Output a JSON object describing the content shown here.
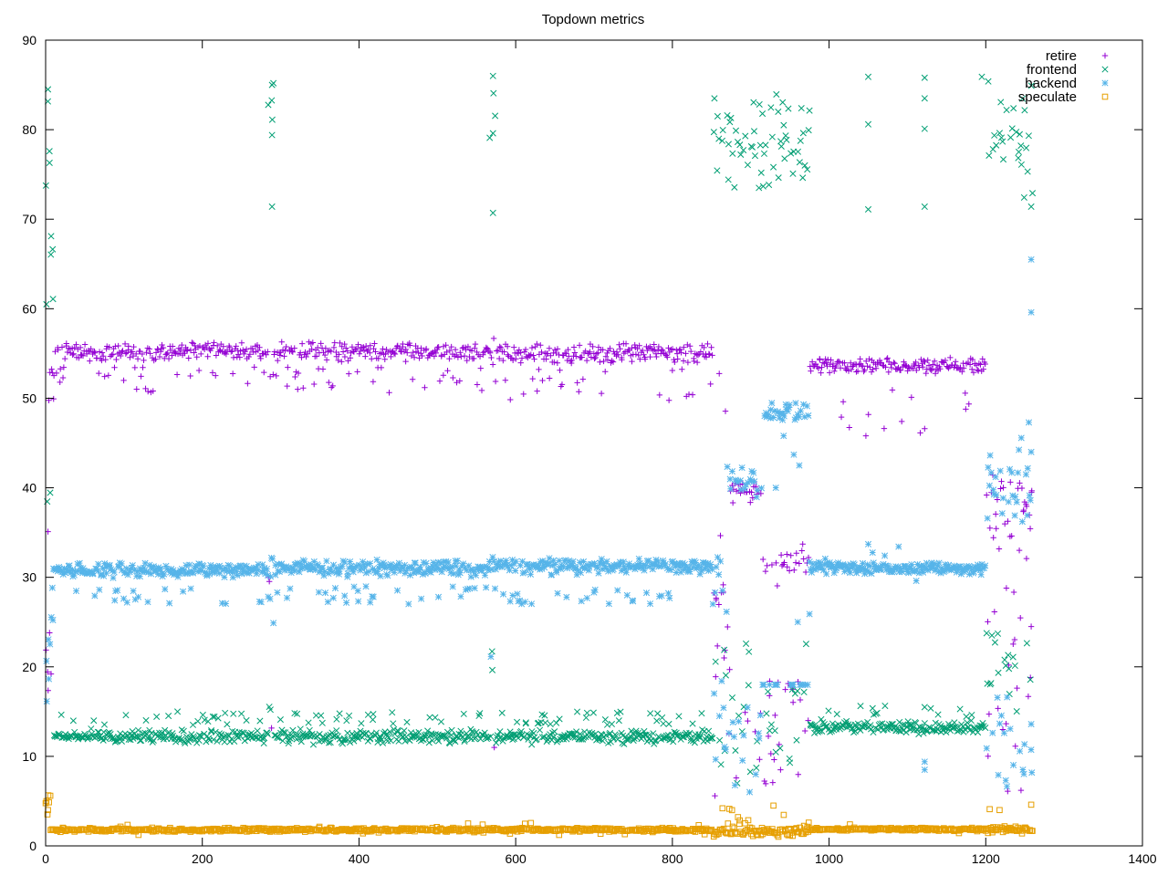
{
  "chart_data": {
    "type": "scatter",
    "title": "Topdown metrics",
    "xlabel": "",
    "ylabel": "",
    "xlim": [
      0,
      1400
    ],
    "ylim": [
      0,
      90
    ],
    "x_ticks": [
      0,
      200,
      400,
      600,
      800,
      1000,
      1200,
      1400
    ],
    "y_ticks": [
      0,
      10,
      20,
      30,
      40,
      50,
      60,
      70,
      80,
      90
    ],
    "grid": false,
    "legend_position": "top-right",
    "series": [
      {
        "name": "retire",
        "marker": "plus",
        "color": "#9400d3",
        "segments": [
          {
            "x0": 0,
            "x1": 4,
            "base": 21,
            "jitter": 14,
            "outlier_prob": 0.3,
            "outlier_low": 6,
            "outlier_high": 35
          },
          {
            "x0": 4,
            "x1": 12,
            "base": 52,
            "jitter": 3,
            "outlier_prob": 0.2,
            "outlier_low": 19,
            "outlier_high": 50
          },
          {
            "x0": 12,
            "x1": 284,
            "base": 55.2,
            "jitter": 1.2,
            "outlier_prob": 0.12,
            "outlier_low": 50.5,
            "outlier_high": 53.5
          },
          {
            "x0": 284,
            "x1": 292,
            "base": 53,
            "jitter": 3,
            "outlier_prob": 0.5,
            "outlier_low": 6,
            "outlier_high": 48
          },
          {
            "x0": 292,
            "x1": 566,
            "base": 55.2,
            "jitter": 1.2,
            "outlier_prob": 0.12,
            "outlier_low": 50.5,
            "outlier_high": 53.5
          },
          {
            "x0": 566,
            "x1": 574,
            "base": 55,
            "jitter": 2,
            "outlier_prob": 0.5,
            "outlier_low": 6,
            "outlier_high": 42
          },
          {
            "x0": 574,
            "x1": 852,
            "base": 55.0,
            "jitter": 1.3,
            "outlier_prob": 0.12,
            "outlier_low": 49.5,
            "outlier_high": 53.5
          },
          {
            "x0": 852,
            "x1": 870,
            "base": 27,
            "jitter": 12,
            "outlier_prob": 0.4,
            "outlier_low": 5,
            "outlier_high": 56
          },
          {
            "x0": 870,
            "x1": 915,
            "base": 39.5,
            "jitter": 1.5,
            "outlier_prob": 0.3,
            "outlier_low": 5,
            "outlier_high": 27
          },
          {
            "x0": 915,
            "x1": 975,
            "base": 31.5,
            "jitter": 2.5,
            "outlier_prob": 0.35,
            "outlier_low": 5,
            "outlier_high": 19
          },
          {
            "x0": 975,
            "x1": 1200,
            "base": 53.7,
            "jitter": 1.0,
            "outlier_prob": 0.05,
            "outlier_low": 46,
            "outlier_high": 52
          },
          {
            "x0": 1200,
            "x1": 1260,
            "base": 38,
            "jitter": 5,
            "outlier_prob": 0.4,
            "outlier_low": 6,
            "outlier_high": 45
          }
        ],
        "points": [
          [
            3,
            35.1
          ],
          [
            5,
            23.8
          ],
          [
            7,
            19.2
          ],
          [
            856,
            27.5
          ],
          [
            866,
            21.0
          ],
          [
            1047,
            45.8
          ],
          [
            1122,
            46.6
          ],
          [
            1228,
            6.1
          ],
          [
            1245,
            6.2
          ],
          [
            1252,
            32.1
          ],
          [
            1258,
            24.5
          ],
          [
            1257,
            18.8
          ]
        ]
      },
      {
        "name": "frontend",
        "marker": "cross",
        "color": "#009e73",
        "segments": [
          {
            "x0": 0,
            "x1": 10,
            "base": 70,
            "jitter": 16,
            "outlier_prob": 0.3,
            "outlier_low": 10,
            "outlier_high": 43
          },
          {
            "x0": 10,
            "x1": 284,
            "base": 12.2,
            "jitter": 0.9,
            "outlier_prob": 0.12,
            "outlier_low": 13.5,
            "outlier_high": 15
          },
          {
            "x0": 284,
            "x1": 292,
            "base": 82,
            "jitter": 5,
            "outlier_prob": 0.3,
            "outlier_low": 8,
            "outlier_high": 18
          },
          {
            "x0": 292,
            "x1": 566,
            "base": 12.2,
            "jitter": 0.9,
            "outlier_prob": 0.12,
            "outlier_low": 13.5,
            "outlier_high": 15
          },
          {
            "x0": 566,
            "x1": 574,
            "base": 79,
            "jitter": 7,
            "outlier_prob": 0.4,
            "outlier_low": 10,
            "outlier_high": 40
          },
          {
            "x0": 574,
            "x1": 852,
            "base": 12.2,
            "jitter": 0.9,
            "outlier_prob": 0.12,
            "outlier_low": 13.5,
            "outlier_high": 15
          },
          {
            "x0": 852,
            "x1": 975,
            "base": 79,
            "jitter": 7,
            "outlier_prob": 0.35,
            "outlier_low": 6,
            "outlier_high": 23
          },
          {
            "x0": 975,
            "x1": 1200,
            "base": 13.2,
            "jitter": 0.8,
            "outlier_prob": 0.05,
            "outlier_low": 14,
            "outlier_high": 16
          },
          {
            "x0": 1200,
            "x1": 1260,
            "base": 79,
            "jitter": 7,
            "outlier_prob": 0.45,
            "outlier_low": 15,
            "outlier_high": 24
          }
        ],
        "points": [
          [
            1,
            60.5
          ],
          [
            3,
            84.5
          ],
          [
            5,
            76.3
          ],
          [
            7,
            68.1
          ],
          [
            289,
            85.0
          ],
          [
            289,
            79.4
          ],
          [
            289,
            71.4
          ],
          [
            571,
            86.0
          ],
          [
            571,
            79.6
          ],
          [
            571,
            70.7
          ],
          [
            1050,
            85.9
          ],
          [
            1050,
            71.1
          ],
          [
            1050,
            80.6
          ],
          [
            1122,
            85.8
          ],
          [
            1122,
            80.1
          ],
          [
            1122,
            71.4
          ],
          [
            1122,
            83.5
          ],
          [
            1122,
            15.5
          ],
          [
            1195,
            85.9
          ],
          [
            1258,
            71.4
          ]
        ]
      },
      {
        "name": "backend",
        "marker": "star",
        "color": "#56b4e9",
        "segments": [
          {
            "x0": 0,
            "x1": 10,
            "base": 20,
            "jitter": 15,
            "outlier_prob": 0.2,
            "outlier_low": 5,
            "outlier_high": 37
          },
          {
            "x0": 10,
            "x1": 284,
            "base": 30.8,
            "jitter": 1.0,
            "outlier_prob": 0.1,
            "outlier_low": 27,
            "outlier_high": 29
          },
          {
            "x0": 284,
            "x1": 292,
            "base": 30,
            "jitter": 5,
            "outlier_prob": 0.4,
            "outlier_low": 6,
            "outlier_high": 36
          },
          {
            "x0": 292,
            "x1": 566,
            "base": 31.0,
            "jitter": 1.0,
            "outlier_prob": 0.1,
            "outlier_low": 27,
            "outlier_high": 29
          },
          {
            "x0": 566,
            "x1": 574,
            "base": 30,
            "jitter": 6,
            "outlier_prob": 0.4,
            "outlier_low": 6,
            "outlier_high": 38
          },
          {
            "x0": 574,
            "x1": 852,
            "base": 31.2,
            "jitter": 1.0,
            "outlier_prob": 0.1,
            "outlier_low": 27,
            "outlier_high": 29
          },
          {
            "x0": 852,
            "x1": 870,
            "base": 30,
            "jitter": 10,
            "outlier_prob": 0.4,
            "outlier_low": 5,
            "outlier_high": 19
          },
          {
            "x0": 870,
            "x1": 915,
            "base": 41,
            "jitter": 2.5,
            "outlier_prob": 0.3,
            "outlier_low": 5,
            "outlier_high": 17
          },
          {
            "x0": 915,
            "x1": 975,
            "base": 48.5,
            "jitter": 1.2,
            "outlier_prob": 0.35,
            "outlier_low": 18,
            "outlier_high": 18
          },
          {
            "x0": 975,
            "x1": 1200,
            "base": 31.0,
            "jitter": 0.8,
            "outlier_prob": 0.05,
            "outlier_low": 29,
            "outlier_high": 33.5
          },
          {
            "x0": 1200,
            "x1": 1260,
            "base": 40,
            "jitter": 6,
            "outlier_prob": 0.4,
            "outlier_low": 6,
            "outlier_high": 17
          }
        ],
        "points": [
          [
            932,
            40.0
          ],
          [
            942,
            45.8
          ],
          [
            955,
            43.7
          ],
          [
            962,
            42.5
          ],
          [
            960,
            25.0
          ],
          [
            975,
            25.9
          ],
          [
            1050,
            33.7
          ],
          [
            1122,
            9.4
          ],
          [
            1122,
            8.5
          ],
          [
            1258,
            65.5
          ],
          [
            1258,
            59.6
          ],
          [
            1255,
            47.3
          ],
          [
            1258,
            44.0
          ],
          [
            1258,
            13.6
          ]
        ]
      },
      {
        "name": "speculate",
        "marker": "square",
        "color": "#e69f00",
        "segments": [
          {
            "x0": 0,
            "x1": 6,
            "base": 4.5,
            "jitter": 1.5,
            "outlier_prob": 0.1,
            "outlier_low": 1,
            "outlier_high": 5.3
          },
          {
            "x0": 6,
            "x1": 852,
            "base": 1.8,
            "jitter": 0.25,
            "outlier_prob": 0.03,
            "outlier_low": 1.2,
            "outlier_high": 2.6
          },
          {
            "x0": 852,
            "x1": 975,
            "base": 1.6,
            "jitter": 0.6,
            "outlier_prob": 0.12,
            "outlier_low": 0.8,
            "outlier_high": 4.5
          },
          {
            "x0": 975,
            "x1": 1200,
            "base": 1.85,
            "jitter": 0.2,
            "outlier_prob": 0.02,
            "outlier_low": 1.0,
            "outlier_high": 2.5
          },
          {
            "x0": 1200,
            "x1": 1260,
            "base": 1.8,
            "jitter": 0.5,
            "outlier_prob": 0.1,
            "outlier_low": 0.9,
            "outlier_high": 4.6
          }
        ],
        "points": [
          [
            1,
            5.0
          ],
          [
            3,
            4.0
          ],
          [
            864,
            4.2
          ],
          [
            871,
            2.5
          ],
          [
            929,
            4.5
          ],
          [
            974,
            2.6
          ],
          [
            1205,
            4.1
          ],
          [
            1258,
            4.6
          ]
        ]
      }
    ]
  }
}
